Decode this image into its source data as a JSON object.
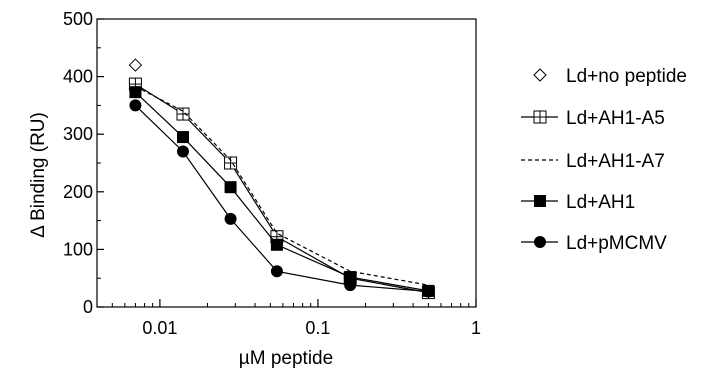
{
  "chart_data": {
    "type": "line",
    "xscale": "log",
    "xlabel": "µM peptide",
    "ylabel": "Δ Binding (RU)",
    "xlim": [
      0.004,
      1
    ],
    "ylim": [
      0,
      500
    ],
    "x_ticks": [
      0.01,
      0.1,
      1
    ],
    "x_tick_labels": [
      "0.01",
      "0.1",
      "1"
    ],
    "y_ticks": [
      0,
      100,
      200,
      300,
      400,
      500
    ],
    "y_tick_labels": [
      "0",
      "100",
      "200",
      "300",
      "400",
      "500"
    ],
    "grid": false,
    "legend_position": "right",
    "series": [
      {
        "name": "Ld+no peptide",
        "marker": "diamond-open",
        "line": "none",
        "points": [
          [
            0.007,
            420
          ]
        ]
      },
      {
        "name": "Ld+AH1-A5",
        "marker": "square-crossed",
        "line": "solid",
        "points": [
          [
            0.007,
            387
          ],
          [
            0.014,
            335
          ],
          [
            0.028,
            250
          ],
          [
            0.055,
            122
          ],
          [
            0.16,
            50
          ],
          [
            0.5,
            25
          ]
        ]
      },
      {
        "name": "Ld+AH1-A7",
        "marker": "none",
        "line": "dashed",
        "points": [
          [
            0.007,
            383
          ],
          [
            0.014,
            340
          ],
          [
            0.028,
            255
          ],
          [
            0.055,
            128
          ],
          [
            0.16,
            62
          ],
          [
            0.5,
            38
          ]
        ]
      },
      {
        "name": "Ld+AH1",
        "marker": "square-filled",
        "line": "solid",
        "points": [
          [
            0.007,
            373
          ],
          [
            0.014,
            295
          ],
          [
            0.028,
            208
          ],
          [
            0.055,
            108
          ],
          [
            0.16,
            52
          ],
          [
            0.5,
            28
          ]
        ]
      },
      {
        "name": "Ld+pMCMV",
        "marker": "circle-filled",
        "line": "solid",
        "points": [
          [
            0.007,
            350
          ],
          [
            0.014,
            270
          ],
          [
            0.028,
            153
          ],
          [
            0.055,
            62
          ],
          [
            0.16,
            38
          ],
          [
            0.5,
            27
          ]
        ]
      }
    ]
  }
}
